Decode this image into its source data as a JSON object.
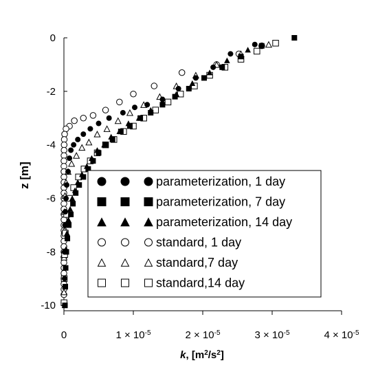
{
  "chart_data": {
    "type": "scatter",
    "title": "",
    "xlabel": "k, [m²/s²]",
    "xlabel_parts": {
      "var": "k",
      "sep": ", [m",
      "sup1": "2",
      "mid": "/s",
      "sup2": "2",
      "end": "]"
    },
    "ylabel": "z [m]",
    "xlim": [
      0,
      4e-05
    ],
    "ylim": [
      -10.2,
      0
    ],
    "x_ticks": [
      {
        "value": 0,
        "label": "0"
      },
      {
        "value": 1e-05,
        "mantissa": "1 × 10",
        "exp": "-5"
      },
      {
        "value": 2e-05,
        "mantissa": "2 × 10",
        "exp": "-5"
      },
      {
        "value": 3e-05,
        "mantissa": "3 × 10",
        "exp": "-5"
      },
      {
        "value": 4e-05,
        "mantissa": "4 × 10",
        "exp": "-5"
      }
    ],
    "y_ticks": [
      {
        "value": 0,
        "label": "0"
      },
      {
        "value": -2,
        "label": "-2"
      },
      {
        "value": -4,
        "label": "-4"
      },
      {
        "value": -6,
        "label": "-6"
      },
      {
        "value": -8,
        "label": "-8"
      },
      {
        "value": -10,
        "label": "-10"
      }
    ],
    "grid": false,
    "legend_position": "lower-right",
    "series": [
      {
        "name": "parameterization, 1 day",
        "marker": "circle",
        "filled": true,
        "x": [
          2.75e-05,
          2.4e-05,
          2.15e-05,
          1.9e-05,
          1.65e-05,
          1.42e-05,
          1.2e-05,
          1.02e-05,
          8.5e-06,
          6.5e-06,
          5e-06,
          3.8e-06,
          2.8e-06,
          2e-06,
          1.4e-06,
          1e-06,
          8e-07,
          6e-07,
          4e-07,
          3e-07,
          2e-07,
          1.5e-07,
          1e-07,
          1e-07,
          1e-07
        ],
        "y": [
          -0.25,
          -0.6,
          -1.1,
          -1.5,
          -1.9,
          -2.3,
          -2.5,
          -2.6,
          -2.8,
          -3.0,
          -3.2,
          -3.4,
          -3.6,
          -3.8,
          -4.0,
          -4.2,
          -4.5,
          -5.0,
          -5.5,
          -6.0,
          -6.5,
          -7.0,
          -8.0,
          -9.0,
          -10.0
        ]
      },
      {
        "name": "parameterization, 7 day",
        "marker": "square",
        "filled": true,
        "x": [
          3.32e-05,
          2.85e-05,
          2.55e-05,
          2.28e-05,
          2.02e-05,
          1.8e-05,
          1.6e-05,
          1.42e-05,
          1.25e-05,
          1.1e-05,
          9.5e-06,
          8.2e-06,
          7e-06,
          6e-06,
          5e-06,
          4.2e-06,
          3.5e-06,
          2.8e-06,
          2.2e-06,
          1.7e-06,
          1.3e-06,
          1e-06,
          7e-07,
          5e-07,
          3.5e-07,
          2.5e-07,
          2e-07,
          1.5e-07
        ],
        "y": [
          0.0,
          -0.3,
          -0.7,
          -1.1,
          -1.5,
          -1.9,
          -2.2,
          -2.5,
          -2.8,
          -3.0,
          -3.3,
          -3.5,
          -3.8,
          -4.0,
          -4.3,
          -4.6,
          -4.9,
          -5.2,
          -5.5,
          -5.8,
          -6.2,
          -6.6,
          -7.0,
          -7.5,
          -8.0,
          -8.6,
          -9.3,
          -10.0
        ]
      },
      {
        "name": "parameterization, 14 day",
        "marker": "triangle",
        "filled": true,
        "x": [
          2.65e-05,
          2.35e-05,
          2.1e-05,
          1.85e-05,
          1.62e-05,
          1.42e-05,
          1.25e-05,
          1.08e-05,
          9.3e-06,
          8e-06,
          6.8e-06,
          5.8e-06,
          4.8e-06,
          4e-06,
          3.3e-06,
          2.6e-06,
          2e-06,
          1.6e-06,
          1.2e-06,
          9e-07,
          6.5e-07,
          4.5e-07,
          3e-07,
          2e-07,
          1.5e-07,
          1e-07
        ],
        "y": [
          -0.45,
          -0.85,
          -1.3,
          -1.7,
          -2.1,
          -2.4,
          -2.7,
          -3.0,
          -3.2,
          -3.5,
          -3.7,
          -4.0,
          -4.2,
          -4.5,
          -4.8,
          -5.1,
          -5.4,
          -5.7,
          -6.0,
          -6.4,
          -6.8,
          -7.3,
          -7.9,
          -8.6,
          -9.3,
          -10.0
        ]
      },
      {
        "name": "standard, 1 day",
        "marker": "circle",
        "filled": false,
        "x": [
          2.85e-05,
          2.52e-05,
          2.2e-05,
          1.7e-05,
          1.3e-05,
          1e-05,
          8e-06,
          6e-06,
          4.2e-06,
          2.8e-06,
          1.5e-06,
          8e-07,
          3e-07,
          1e-07,
          5e-08,
          3e-08,
          2e-08,
          1e-08,
          0,
          0,
          0,
          0,
          0,
          0,
          0,
          0,
          0,
          0,
          0,
          0,
          0,
          0,
          0,
          0,
          0,
          0,
          0,
          0,
          0,
          0,
          0,
          0,
          0,
          0,
          0
        ],
        "y": [
          -0.3,
          -0.6,
          -1.0,
          -1.3,
          -1.8,
          -2.1,
          -2.4,
          -2.7,
          -2.9,
          -3.0,
          -3.1,
          -3.3,
          -3.4,
          -3.6,
          -3.8,
          -4.0,
          -4.2,
          -4.4,
          -4.6,
          -4.8,
          -5.0,
          -5.2,
          -5.4,
          -5.6,
          -5.8,
          -6.0,
          -6.2,
          -6.4,
          -6.6,
          -6.8,
          -7.0,
          -7.2,
          -7.4,
          -7.6,
          -7.8,
          -8.0,
          -8.2,
          -8.4,
          -8.6,
          -8.8,
          -9.0,
          -9.2,
          -9.4,
          -9.6,
          -9.9
        ]
      },
      {
        "name": "standard,7 day",
        "marker": "triangle",
        "filled": false,
        "x": [
          2.95e-05,
          2.55e-05,
          2.2e-05,
          1.9e-05,
          1.62e-05,
          1.38e-05,
          1.15e-05,
          9.5e-06,
          7.8e-06,
          6.2e-06,
          4.8e-06,
          3.6e-06,
          2.6e-06,
          1.8e-06,
          1.1e-06,
          6e-07,
          3e-07,
          1.5e-07,
          1e-07,
          5e-08,
          2e-08,
          1e-08
        ],
        "y": [
          -0.25,
          -0.6,
          -1.0,
          -1.4,
          -1.8,
          -2.2,
          -2.5,
          -2.8,
          -3.1,
          -3.4,
          -3.6,
          -3.9,
          -4.1,
          -4.4,
          -4.7,
          -5.0,
          -5.4,
          -5.9,
          -6.5,
          -7.2,
          -8.2,
          -9.5
        ]
      },
      {
        "name": "standard,14 day",
        "marker": "square",
        "filled": false,
        "x": [
          3.05e-05,
          2.78e-05,
          2.55e-05,
          2.32e-05,
          2.1e-05,
          1.88e-05,
          1.68e-05,
          1.5e-05,
          1.32e-05,
          1.15e-05,
          1e-05,
          8.6e-06,
          7.2e-06,
          6e-06,
          4.8e-06,
          3.8e-06,
          2.9e-06,
          2.1e-06,
          1.4e-06,
          8e-07,
          4e-07,
          2e-07,
          1e-07,
          5e-08,
          2e-08
        ],
        "y": [
          -0.2,
          -0.5,
          -0.8,
          -1.1,
          -1.4,
          -1.8,
          -2.1,
          -2.4,
          -2.7,
          -3.0,
          -3.3,
          -3.5,
          -3.8,
          -4.0,
          -4.3,
          -4.6,
          -4.9,
          -5.2,
          -5.6,
          -6.0,
          -6.6,
          -7.3,
          -8.1,
          -9.0,
          -9.9
        ]
      }
    ]
  }
}
